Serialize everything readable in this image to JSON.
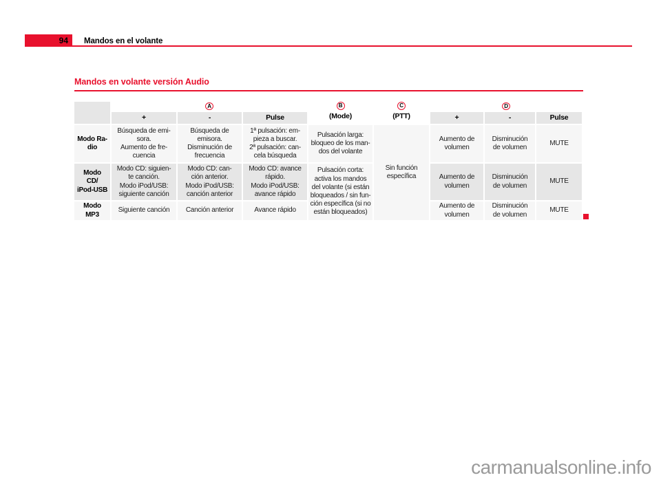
{
  "header": {
    "page_number": "94",
    "chapter_title": "Mandos en el volante"
  },
  "section": {
    "title": "Mandos en volante versión Audio"
  },
  "table": {
    "keys": {
      "a": "A",
      "b": "B",
      "c": "C",
      "d": "D"
    },
    "col_b_label": "(Mode)",
    "col_c_label": "(PTT)",
    "sub": {
      "plus": "+",
      "minus": "-",
      "pulse": "Pulse"
    },
    "b_cells": {
      "radio": "Pulsación larga:\nbloqueo de los man-\ndos del volante",
      "cd_mp3": "Pulsación corta:\nactiva los mandos\ndel volante (si están\nbloqueados / sin fun-\nción específica (si no\nestán bloqueados)"
    },
    "c_cell": "Sin función\nespecífica",
    "rows": [
      {
        "mode": "Modo Ra-\ndio",
        "a_plus": "Búsqueda de emi-\nsora.\nAumento de fre-\ncuencia",
        "a_minus": "Búsqueda de\nemisora.\nDisminución de\nfrecuencia",
        "a_pulse": "1ª pulsación: em-\npieza a buscar.\n2ª pulsación: can-\ncela búsqueda",
        "d_plus": "Aumento de\nvolumen",
        "d_minus": "Disminución\nde volumen",
        "d_pulse": "MUTE"
      },
      {
        "mode": "Modo\nCD/\niPod-USB",
        "a_plus": "Modo CD: siguien-\nte canción.\nModo iPod/USB:\nsiguiente canción",
        "a_minus": "Modo CD: can-\nción anterior.\nModo iPod/USB:\ncanción anterior",
        "a_pulse": "Modo CD: avance\nrápido.\nModo iPod/USB:\navance rápido",
        "d_plus": "Aumento de\nvolumen",
        "d_minus": "Disminución\nde volumen",
        "d_pulse": "MUTE"
      },
      {
        "mode": "Modo\nMP3",
        "a_plus": "Siguiente canción",
        "a_minus": "Canción anterior",
        "a_pulse": "Avance rápido",
        "d_plus": "Aumento de\nvolumen",
        "d_minus": "Disminución\nde volumen",
        "d_pulse": "MUTE"
      }
    ]
  },
  "footer": {
    "watermark": "carmanualsonline.info"
  },
  "colors": {
    "accent_red": "#e8112d",
    "cell_gray": "#e6e6e6",
    "cell_light": "#f6f6f6",
    "watermark_gray": "#9a9a9a"
  }
}
